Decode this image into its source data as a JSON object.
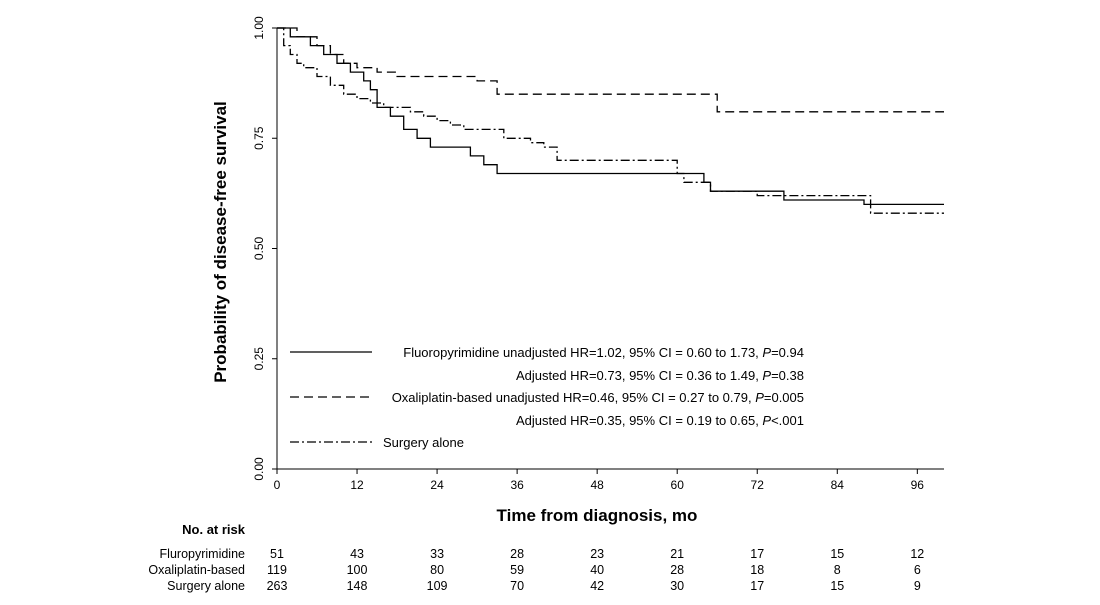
{
  "chart_data": {
    "type": "line",
    "subtype": "kaplan-meier-step",
    "xlabel": "Time from diagnosis, mo",
    "ylabel": "Probability of disease-free survival",
    "xlim": [
      0,
      100
    ],
    "ylim": [
      0,
      1
    ],
    "x_ticks": [
      0,
      12,
      24,
      36,
      48,
      60,
      72,
      84,
      96
    ],
    "x_tick_labels": [
      "0",
      "12",
      "24",
      "36",
      "48",
      "60",
      "72",
      "84",
      "96"
    ],
    "y_ticks": [
      0,
      0.25,
      0.5,
      0.75,
      1.0
    ],
    "y_tick_labels": [
      "0.00",
      "0.25",
      "0.50",
      "0.75",
      "1.00"
    ],
    "grid": false,
    "legend_position": "bottom-left",
    "series": [
      {
        "name": "Fluoropyrimidine",
        "line_style": "solid",
        "x": [
          0,
          2,
          5,
          7,
          9,
          11,
          13,
          14,
          15,
          17,
          19,
          21,
          23,
          26,
          29,
          31,
          33,
          36,
          48,
          60,
          64,
          65,
          76,
          88,
          100
        ],
        "y": [
          1.0,
          0.98,
          0.96,
          0.94,
          0.92,
          0.9,
          0.88,
          0.86,
          0.82,
          0.8,
          0.77,
          0.75,
          0.73,
          0.73,
          0.71,
          0.69,
          0.67,
          0.67,
          0.67,
          0.67,
          0.65,
          0.63,
          0.61,
          0.6,
          0.6
        ]
      },
      {
        "name": "Oxaliplatin-based",
        "line_style": "dashed",
        "x": [
          0,
          3,
          6,
          8,
          10,
          12,
          15,
          18,
          24,
          30,
          33,
          36,
          48,
          60,
          66,
          72,
          100
        ],
        "y": [
          1.0,
          0.98,
          0.96,
          0.94,
          0.92,
          0.91,
          0.9,
          0.89,
          0.89,
          0.88,
          0.85,
          0.85,
          0.85,
          0.85,
          0.81,
          0.81,
          0.81
        ]
      },
      {
        "name": "Surgery alone",
        "line_style": "dash-dot",
        "x": [
          0,
          1,
          2,
          3,
          4,
          6,
          8,
          10,
          12,
          14,
          16,
          18,
          20,
          22,
          24,
          26,
          28,
          34,
          38,
          40,
          42,
          48,
          60,
          61,
          65,
          72,
          84,
          89,
          100
        ],
        "y": [
          1.0,
          0.96,
          0.94,
          0.92,
          0.91,
          0.89,
          0.87,
          0.85,
          0.84,
          0.83,
          0.82,
          0.82,
          0.81,
          0.8,
          0.79,
          0.78,
          0.77,
          0.75,
          0.74,
          0.73,
          0.7,
          0.7,
          0.67,
          0.65,
          0.63,
          0.62,
          0.62,
          0.58,
          0.58
        ]
      }
    ],
    "legend": [
      {
        "style": "solid",
        "text": "Fluoropyrimidine unadjusted HR=1.02, 95% CI = 0.60 to 1.73, ",
        "p_label": "P",
        "p_value": "=0.94"
      },
      {
        "style": "none",
        "text": "Adjusted HR=0.73, 95% CI = 0.36 to 1.49, ",
        "p_label": "P",
        "p_value": "=0.38"
      },
      {
        "style": "dashed",
        "text": "Oxaliplatin-based unadjusted HR=0.46, 95% CI = 0.27 to 0.79, ",
        "p_label": "P",
        "p_value": "=0.005"
      },
      {
        "style": "none",
        "text": "Adjusted HR=0.35, 95% CI = 0.19 to 0.65, ",
        "p_label": "P",
        "p_value": "<.001"
      },
      {
        "style": "dashdot",
        "text": "Surgery alone",
        "p_label": "",
        "p_value": ""
      }
    ],
    "risk_table": {
      "title": "No. at risk",
      "time_points": [
        0,
        12,
        24,
        36,
        48,
        60,
        72,
        84,
        96
      ],
      "rows": [
        {
          "label": "Fluropyrimidine",
          "values": [
            "51",
            "43",
            "33",
            "28",
            "23",
            "21",
            "17",
            "15",
            "12"
          ]
        },
        {
          "label": "Oxaliplatin-based",
          "values": [
            "119",
            "100",
            "80",
            "59",
            "40",
            "28",
            "18",
            "8",
            "6"
          ]
        },
        {
          "label": "Surgery alone",
          "values": [
            "263",
            "148",
            "109",
            "70",
            "42",
            "30",
            "17",
            "15",
            "9"
          ]
        }
      ]
    }
  }
}
